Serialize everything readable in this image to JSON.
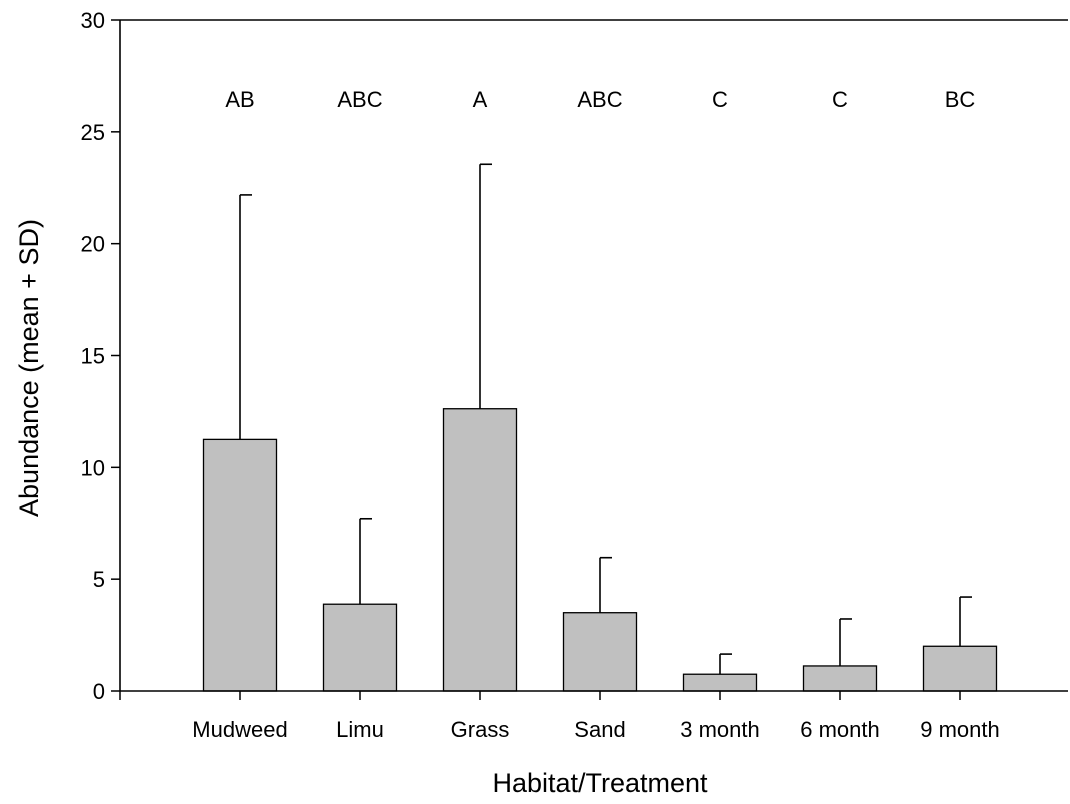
{
  "chart_data": {
    "type": "bar",
    "title": "",
    "xlabel": "Habitat/Treatment",
    "ylabel": "Abundance (mean  + SD)",
    "ylim": [
      0,
      30
    ],
    "yticks": [
      0,
      5,
      10,
      15,
      20,
      25,
      30
    ],
    "grid": false,
    "legend": "none",
    "categories": [
      "Mudweed",
      "Limu",
      "Grass",
      "Sand",
      "3 month",
      "6 month",
      "9 month"
    ],
    "series": [
      {
        "values": [
          11.25,
          3.88,
          12.62,
          3.5,
          0.75,
          1.12,
          2.0
        ],
        "sd": [
          10.93,
          3.82,
          10.93,
          2.46,
          0.9,
          2.1,
          2.2
        ]
      }
    ],
    "annotations": [
      "AB",
      "ABC",
      "A",
      "ABC",
      "C",
      "C",
      "BC"
    ],
    "colors": {
      "bar_fill": "#c0c0c0",
      "bar_stroke": "#000000",
      "axis": "#000000"
    }
  }
}
